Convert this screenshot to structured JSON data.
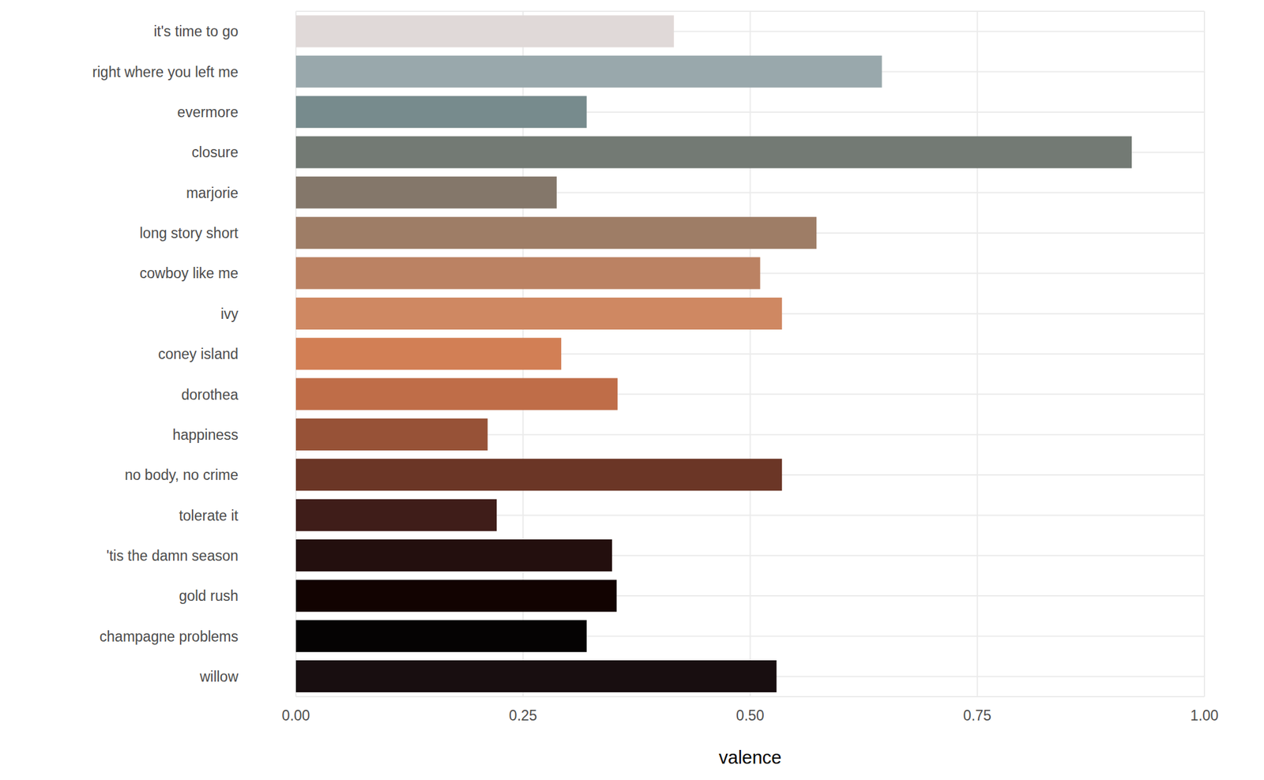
{
  "chart_data": {
    "type": "bar",
    "orientation": "horizontal",
    "x_label": "valence",
    "categories": [
      "it's time to go",
      "right where you left me",
      "evermore",
      "closure",
      "marjorie",
      "long story short",
      "cowboy like me",
      "ivy",
      "coney island",
      "dorothea",
      "happiness",
      "no body, no crime",
      "tolerate it",
      "'tis the damn season",
      "gold rush",
      "champagne problems",
      "willow"
    ],
    "values": [
      0.416,
      0.645,
      0.32,
      0.92,
      0.287,
      0.573,
      0.511,
      0.535,
      0.292,
      0.354,
      0.211,
      0.535,
      0.221,
      0.348,
      0.353,
      0.32,
      0.529
    ],
    "colors": [
      "#e0d9d8",
      "#99a8ac",
      "#778b8d",
      "#737a74",
      "#84776a",
      "#9e7d66",
      "#bb8263",
      "#cf8862",
      "#d27f55",
      "#bf6d48",
      "#975237",
      "#6b3626",
      "#3f1d19",
      "#230f0e",
      "#120301",
      "#050303",
      "#180e10"
    ],
    "xlim": [
      0,
      1
    ],
    "xticks": [
      {
        "value": 0,
        "label": "0.00"
      },
      {
        "value": 0.25,
        "label": "0.25"
      },
      {
        "value": 0.5,
        "label": "0.50"
      },
      {
        "value": 0.75,
        "label": "0.75"
      },
      {
        "value": 1,
        "label": "1.00"
      }
    ],
    "grid": true
  }
}
